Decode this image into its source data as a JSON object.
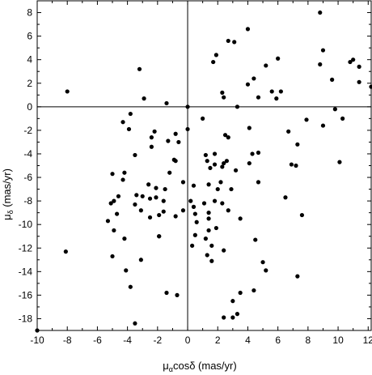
{
  "chart_data": {
    "type": "scatter",
    "title": "",
    "xlabel": {
      "base": "μ",
      "sub": "α",
      "rest": "cosδ (mas/yr)"
    },
    "ylabel": {
      "base": "μ",
      "sub": "δ",
      "rest": " (mas/yr)"
    },
    "xlim": [
      -10,
      12.2
    ],
    "ylim": [
      -19,
      9
    ],
    "xticks": [
      -10,
      -8,
      -6,
      -4,
      -2,
      0,
      2,
      4,
      6,
      8,
      10,
      12
    ],
    "yticks": [
      8,
      6,
      4,
      2,
      0,
      -2,
      -4,
      -6,
      -8,
      -10,
      -12,
      -14,
      -16,
      -18
    ],
    "zero_lines": true,
    "grid": false,
    "marker_color": "#000000",
    "points": [
      [
        8.8,
        8.0
      ],
      [
        4.0,
        6.6
      ],
      [
        2.7,
        5.6
      ],
      [
        3.1,
        5.5
      ],
      [
        9.0,
        4.8
      ],
      [
        11.0,
        4.0
      ],
      [
        1.9,
        4.4
      ],
      [
        1.7,
        3.8
      ],
      [
        6.0,
        4.1
      ],
      [
        10.8,
        3.8
      ],
      [
        8.8,
        3.6
      ],
      [
        5.2,
        3.5
      ],
      [
        11.4,
        3.4
      ],
      [
        -3.2,
        3.2
      ],
      [
        4.4,
        2.4
      ],
      [
        9.6,
        2.3
      ],
      [
        4.0,
        1.9
      ],
      [
        11.4,
        2.1
      ],
      [
        12.2,
        1.7
      ],
      [
        -8.0,
        1.3
      ],
      [
        5.6,
        1.3
      ],
      [
        6.2,
        1.3
      ],
      [
        2.3,
        1.2
      ],
      [
        2.4,
        0.8
      ],
      [
        4.7,
        0.8
      ],
      [
        5.9,
        0.7
      ],
      [
        -2.9,
        0.7
      ],
      [
        -1.4,
        0.3
      ],
      [
        3.3,
        0.0
      ],
      [
        0.0,
        0.0
      ],
      [
        9.8,
        -0.2
      ],
      [
        -3.8,
        -0.6
      ],
      [
        10.3,
        -1.0
      ],
      [
        -4.3,
        -1.3
      ],
      [
        7.9,
        -1.1
      ],
      [
        1.0,
        -1.0
      ],
      [
        9.0,
        -1.6
      ],
      [
        -2.2,
        -2.1
      ],
      [
        -3.9,
        -1.9
      ],
      [
        0.0,
        -1.9
      ],
      [
        -0.8,
        -2.3
      ],
      [
        6.7,
        -2.1
      ],
      [
        -2.4,
        -2.6
      ],
      [
        2.5,
        -2.4
      ],
      [
        -1.3,
        -2.9
      ],
      [
        2.7,
        -2.6
      ],
      [
        -0.6,
        -3.0
      ],
      [
        4.1,
        -1.8
      ],
      [
        -2.4,
        -3.4
      ],
      [
        7.3,
        -3.2
      ],
      [
        1.2,
        -4.1
      ],
      [
        1.8,
        -4.0
      ],
      [
        -3.5,
        -4.1
      ],
      [
        -0.9,
        -4.5
      ],
      [
        4.3,
        -4.0
      ],
      [
        4.7,
        -3.9
      ],
      [
        -0.8,
        -4.6
      ],
      [
        1.3,
        -4.6
      ],
      [
        2.6,
        -4.6
      ],
      [
        1.8,
        -4.9
      ],
      [
        2.4,
        -4.8
      ],
      [
        1.5,
        -5.2
      ],
      [
        2.3,
        -5.1
      ],
      [
        4.1,
        -4.8
      ],
      [
        6.9,
        -4.9
      ],
      [
        7.2,
        -5.0
      ],
      [
        10.1,
        -4.7
      ],
      [
        -5.0,
        -5.7
      ],
      [
        -4.2,
        -5.6
      ],
      [
        -1.2,
        -5.6
      ],
      [
        3.2,
        -5.4
      ],
      [
        -0.3,
        -6.4
      ],
      [
        2.2,
        -6.4
      ],
      [
        -5.1,
        -8.2
      ],
      [
        -4.6,
        -7.6
      ],
      [
        -4.3,
        -6.2
      ],
      [
        -2.6,
        -6.6
      ],
      [
        -2.1,
        -6.9
      ],
      [
        -1.5,
        -7.0
      ],
      [
        -3.5,
        -8.3
      ],
      [
        -2.5,
        -7.8
      ],
      [
        -2.1,
        -7.7
      ],
      [
        0.4,
        -6.7
      ],
      [
        1.4,
        -6.6
      ],
      [
        4.7,
        -6.4
      ],
      [
        2.0,
        -7.0
      ],
      [
        2.9,
        -7.0
      ],
      [
        0.2,
        -8.0
      ],
      [
        -1.6,
        -8.0
      ],
      [
        1.1,
        -8.2
      ],
      [
        1.8,
        -8.0
      ],
      [
        2.3,
        -8.2
      ],
      [
        -3.4,
        -7.5
      ],
      [
        -3.0,
        -7.6
      ],
      [
        6.5,
        -7.7
      ],
      [
        -0.3,
        -8.8
      ],
      [
        0.4,
        -8.5
      ],
      [
        -4.9,
        -8.0
      ],
      [
        2.7,
        -8.8
      ],
      [
        -1.6,
        -8.9
      ],
      [
        1.4,
        -9.0
      ],
      [
        -0.8,
        -9.3
      ],
      [
        -3.1,
        -8.8
      ],
      [
        -4.7,
        -9.1
      ],
      [
        -5.3,
        -9.7
      ],
      [
        -2.5,
        -9.4
      ],
      [
        -1.9,
        -9.2
      ],
      [
        0.5,
        -9.1
      ],
      [
        1.4,
        -9.5
      ],
      [
        3.5,
        -9.5
      ],
      [
        7.6,
        -9.2
      ],
      [
        0.6,
        -9.8
      ],
      [
        -4.9,
        -10.5
      ],
      [
        1.9,
        -10.3
      ],
      [
        1.4,
        -10.5
      ],
      [
        0.5,
        -10.9
      ],
      [
        -1.9,
        -11.0
      ],
      [
        -4.2,
        -11.2
      ],
      [
        -1.9,
        -11.0
      ],
      [
        1.2,
        -11.2
      ],
      [
        4.5,
        -11.3
      ],
      [
        0.3,
        -11.8
      ],
      [
        1.6,
        -11.8
      ],
      [
        -8.1,
        -12.3
      ],
      [
        -5.0,
        -12.7
      ],
      [
        -3.1,
        -13.0
      ],
      [
        1.3,
        -12.6
      ],
      [
        1.6,
        -13.1
      ],
      [
        2.4,
        -12.2
      ],
      [
        5.0,
        -13.2
      ],
      [
        5.2,
        -13.9
      ],
      [
        -4.1,
        -13.9
      ],
      [
        7.3,
        -14.4
      ],
      [
        -3.8,
        -15.3
      ],
      [
        -1.4,
        -15.8
      ],
      [
        3.5,
        -15.8
      ],
      [
        -0.7,
        -16.0
      ],
      [
        4.4,
        -15.6
      ],
      [
        3.0,
        -16.5
      ],
      [
        3.3,
        -17.6
      ],
      [
        3.0,
        -17.9
      ],
      [
        2.4,
        -17.9
      ],
      [
        -3.5,
        -18.4
      ],
      [
        -10.0,
        -19.0
      ]
    ]
  }
}
